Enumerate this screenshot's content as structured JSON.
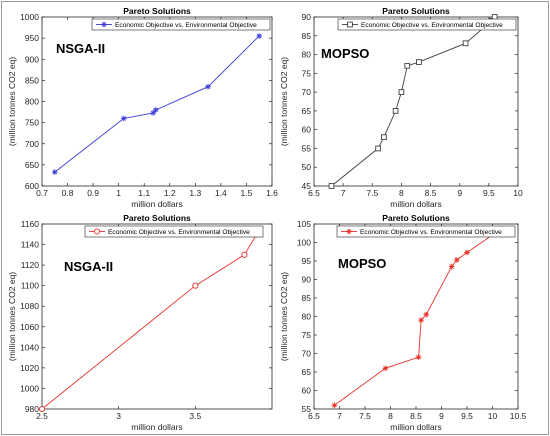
{
  "chart_data": [
    {
      "type": "line",
      "title": "Pareto Solutions",
      "tag": "NSGA-II",
      "xlabel": "million dollars",
      "ylabel": "(million tonnes CO2 eq)",
      "xlim": [
        0.7,
        1.6
      ],
      "ylim": [
        600,
        1000
      ],
      "xticks": [
        "0.7",
        "0.8",
        "0.9",
        "1",
        "1.1",
        "1.2",
        "1.3",
        "1.4",
        "1.5",
        "1.6"
      ],
      "yticks": [
        "600",
        "650",
        "700",
        "750",
        "800",
        "850",
        "900",
        "950",
        "1000"
      ],
      "legend_position": "top-center",
      "grid": false,
      "series": [
        {
          "name": "Economic Objective vs. Environmental Objective",
          "color": "#3b3bd9",
          "marker": "star",
          "x": [
            0.75,
            1.02,
            1.135,
            1.145,
            1.35,
            1.55
          ],
          "y": [
            633,
            760,
            773,
            780,
            835,
            955
          ]
        }
      ]
    },
    {
      "type": "line",
      "title": "Pareto Solutions",
      "tag": "MOPSO",
      "xlabel": "million dollars",
      "ylabel": "(million tonnes CO2 eq)",
      "xlim": [
        6.5,
        10
      ],
      "ylim": [
        45,
        90
      ],
      "xticks": [
        "6.5",
        "7",
        "7.5",
        "8",
        "8.5",
        "9",
        "9.5",
        "10"
      ],
      "yticks": [
        "45",
        "50",
        "55",
        "60",
        "65",
        "70",
        "75",
        "80",
        "85",
        "90"
      ],
      "legend_position": "top-right",
      "grid": false,
      "series": [
        {
          "name": "Economic Objective vs. Environmental Objective",
          "color": "#404040",
          "marker": "square",
          "x": [
            6.8,
            7.6,
            7.7,
            7.9,
            8.0,
            8.1,
            8.3,
            9.1,
            9.55,
            9.6
          ],
          "y": [
            45,
            55,
            58,
            65,
            70,
            77,
            78,
            83,
            89,
            90
          ]
        }
      ]
    },
    {
      "type": "line",
      "title": "Pareto Solutions",
      "tag": "NSGA-II",
      "xlabel": "million dollars",
      "ylabel": "(million tonnes CO2 eq)",
      "xlim": [
        2.5,
        4
      ],
      "ylim": [
        980,
        1160
      ],
      "xticks": [
        "2.5",
        "3",
        "3.5"
      ],
      "yticks": [
        "980",
        "1000",
        "1020",
        "1040",
        "1060",
        "1080",
        "1100",
        "1120",
        "1140",
        "1160"
      ],
      "legend_position": "top-center",
      "grid": false,
      "series": [
        {
          "name": "Economic Objective vs. Environmental Objective",
          "color": "#e8332b",
          "marker": "circle",
          "x": [
            2.5,
            3.5,
            3.82,
            3.9
          ],
          "y": [
            980,
            1100,
            1130,
            1150
          ]
        }
      ]
    },
    {
      "type": "line",
      "title": "Pareto Solutions",
      "tag": "MOPSO",
      "xlabel": "million dollars",
      "ylabel": "(million tonnes CO2 eq)",
      "xlim": [
        6.5,
        10.5
      ],
      "ylim": [
        55,
        105
      ],
      "xticks": [
        "6.5",
        "7",
        "7.5",
        "8",
        "8.5",
        "9",
        "9.5",
        "10",
        "10.5"
      ],
      "yticks": [
        "55",
        "60",
        "65",
        "70",
        "75",
        "80",
        "85",
        "90",
        "95",
        "100",
        "105"
      ],
      "legend_position": "top-right",
      "grid": false,
      "series": [
        {
          "name": "Economic Objective vs. Environmental Objective",
          "color": "#e8332b",
          "marker": "star",
          "x": [
            6.9,
            7.9,
            8.55,
            8.6,
            8.7,
            9.2,
            9.3,
            9.5,
            10.1,
            10.15
          ],
          "y": [
            56,
            66,
            69,
            79,
            80.5,
            93.5,
            95.3,
            97.3,
            103,
            103.3
          ]
        }
      ]
    }
  ]
}
